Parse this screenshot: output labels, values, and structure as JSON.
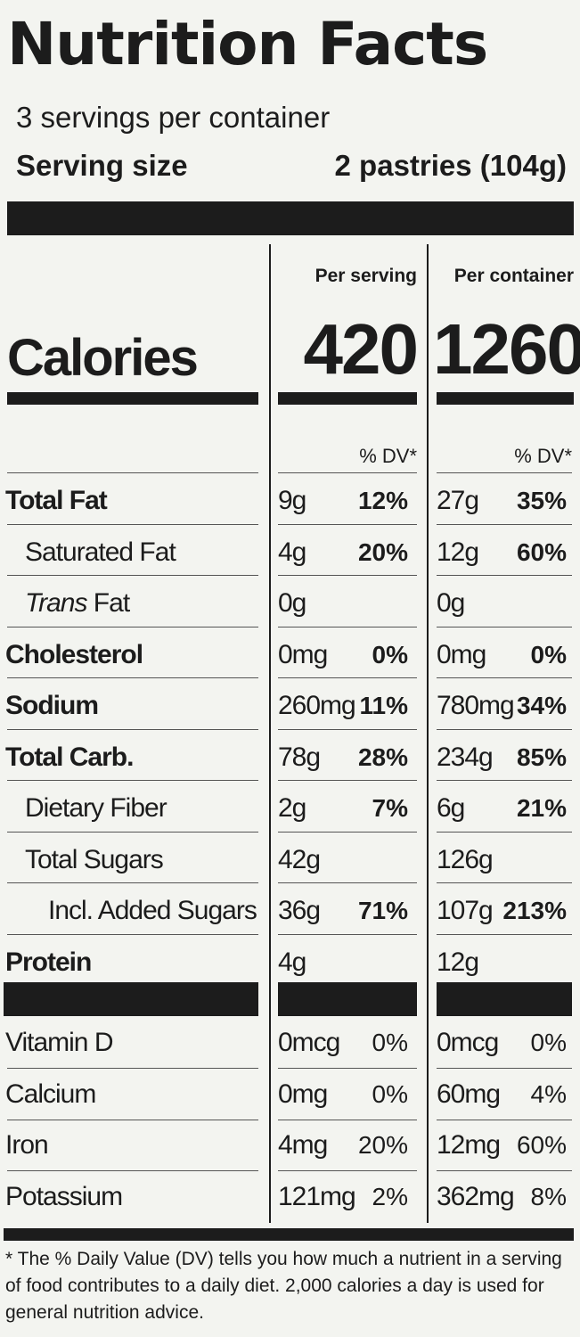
{
  "title": "Nutrition Facts",
  "servings_per_container": "3 servings per container",
  "serving_size": {
    "label": "Serving size",
    "value": "2 pastries (104g)"
  },
  "columns": {
    "per_serving": "Per serving",
    "per_container": "Per container"
  },
  "calories": {
    "label": "Calories",
    "per_serving": "420",
    "per_container": "1260"
  },
  "dv_header": "% DV*",
  "nutrients": [
    {
      "label": "Total Fat",
      "bold": true,
      "serving_amt": "9g",
      "serving_dv": "12%",
      "container_amt": "27g",
      "container_dv": "35%"
    },
    {
      "label": "Saturated Fat",
      "indent": 1,
      "serving_amt": "4g",
      "serving_dv": "20%",
      "container_amt": "12g",
      "container_dv": "60%"
    },
    {
      "label_italic": "Trans",
      "label": " Fat",
      "indent": 1,
      "serving_amt": "0g",
      "serving_dv": "",
      "container_amt": "0g",
      "container_dv": ""
    },
    {
      "label": "Cholesterol",
      "bold": true,
      "serving_amt": "0mg",
      "serving_dv": "0%",
      "container_amt": "0mg",
      "container_dv": "0%"
    },
    {
      "label": "Sodium",
      "bold": true,
      "serving_amt": "260mg",
      "serving_dv": "11%",
      "container_amt": "780mg",
      "container_dv": "34%"
    },
    {
      "label": "Total Carb.",
      "bold": true,
      "serving_amt": "78g",
      "serving_dv": "28%",
      "container_amt": "234g",
      "container_dv": "85%"
    },
    {
      "label": "Dietary Fiber",
      "indent": 1,
      "serving_amt": "2g",
      "serving_dv": "7%",
      "container_amt": "6g",
      "container_dv": "21%"
    },
    {
      "label": "Total Sugars",
      "indent": 1,
      "serving_amt": "42g",
      "serving_dv": "",
      "container_amt": "126g",
      "container_dv": ""
    },
    {
      "label": "Incl. Added Sugars",
      "indent": 2,
      "serving_amt": "36g",
      "serving_dv": "71%",
      "container_amt": "107g",
      "container_dv": "213%"
    },
    {
      "label": "Protein",
      "bold": true,
      "serving_amt": "4g",
      "serving_dv": "",
      "container_amt": "12g",
      "container_dv": ""
    }
  ],
  "vitamins": [
    {
      "label": "Vitamin D",
      "serving_amt": "0mcg",
      "serving_dv": "0%",
      "container_amt": "0mcg",
      "container_dv": "0%"
    },
    {
      "label": "Calcium",
      "serving_amt": "0mg",
      "serving_dv": "0%",
      "container_amt": "60mg",
      "container_dv": "4%"
    },
    {
      "label": "Iron",
      "serving_amt": "4mg",
      "serving_dv": "20%",
      "container_amt": "12mg",
      "container_dv": "60%"
    },
    {
      "label": "Potassium",
      "serving_amt": "121mg",
      "serving_dv": "2%",
      "container_amt": "362mg",
      "container_dv": "8%"
    }
  ],
  "footnote": "* The % Daily Value (DV) tells you how much a nutrient in a serving of food contributes to a daily diet. 2,000 calories a day is used for general nutrition advice."
}
